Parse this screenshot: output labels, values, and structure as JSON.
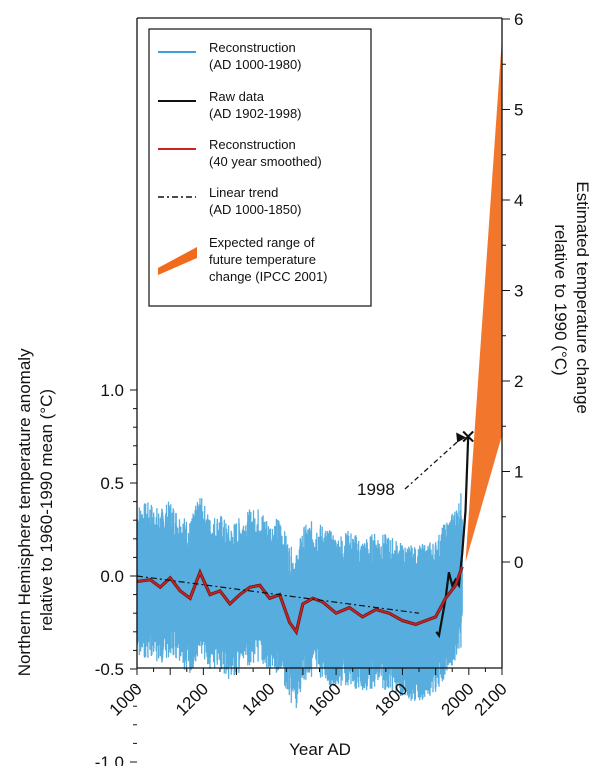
{
  "chart_data": {
    "type": "line",
    "xlabel": "Year AD",
    "ylabel_left": "Northern Hemisphere temperature anomaly relative to 1960-1990 mean (°C)",
    "ylabel_right": "Estimated temperature change relative to 1990 (°C)",
    "x_ticks": [
      "1000",
      "1200",
      "1400",
      "1600",
      "1800",
      "2000",
      "2100"
    ],
    "x_tick_values": [
      1000,
      1200,
      1400,
      1600,
      1800,
      2000,
      2100
    ],
    "y_left_ticks": [
      "1.0",
      "0.5",
      "0.0",
      "-0.5",
      "-1.0"
    ],
    "y_left_values": [
      1.0,
      0.5,
      0.0,
      -0.5,
      -1.0
    ],
    "y_right_ticks": [
      "6",
      "5",
      "4",
      "3",
      "2",
      "1",
      "0"
    ],
    "y_right_values": [
      6,
      5,
      4,
      3,
      2,
      1,
      0
    ],
    "xlim": [
      1000,
      2100
    ],
    "ylim_left": [
      -1.0,
      1.0
    ],
    "ylim_right": [
      0,
      6
    ],
    "legend_position": "top-left",
    "legend": [
      {
        "label_lines": [
          "Reconstruction",
          "(AD 1000-1980)"
        ],
        "color": "#3aa0d8",
        "style": "solid"
      },
      {
        "label_lines": [
          "Raw data",
          "(AD 1902-1998)"
        ],
        "color": "#111111",
        "style": "solid"
      },
      {
        "label_lines": [
          "Reconstruction",
          "(40 year smoothed)"
        ],
        "color": "#cc2222",
        "style": "solid"
      },
      {
        "label_lines": [
          "Linear trend",
          "(AD 1000-1850)"
        ],
        "color": "#111111",
        "style": "dashdot"
      },
      {
        "label_lines": [
          "Expected range of",
          "future temperature",
          "change (IPCC 2001)"
        ],
        "color": "#f26a1b",
        "style": "fill"
      }
    ],
    "annotation": {
      "text": "1998",
      "x": 1998,
      "y": 0.75
    },
    "series": [
      {
        "name": "Reconstruction (40 year smoothed)",
        "color": "#cc2222",
        "x": [
          1000,
          1040,
          1070,
          1100,
          1130,
          1160,
          1190,
          1220,
          1250,
          1280,
          1310,
          1340,
          1370,
          1400,
          1430,
          1460,
          1480,
          1500,
          1530,
          1560,
          1600,
          1640,
          1680,
          1720,
          1760,
          1800,
          1840,
          1870,
          1900,
          1930,
          1960,
          1980
        ],
        "y": [
          -0.03,
          -0.02,
          -0.06,
          -0.01,
          -0.08,
          -0.12,
          0.02,
          -0.1,
          -0.08,
          -0.15,
          -0.1,
          -0.06,
          -0.05,
          -0.12,
          -0.1,
          -0.25,
          -0.3,
          -0.15,
          -0.12,
          -0.14,
          -0.2,
          -0.17,
          -0.22,
          -0.18,
          -0.2,
          -0.24,
          -0.26,
          -0.24,
          -0.22,
          -0.12,
          -0.05,
          0.05
        ]
      },
      {
        "name": "Raw data (AD 1902-1998)",
        "color": "#111111",
        "x": [
          1902,
          1910,
          1920,
          1930,
          1940,
          1950,
          1960,
          1970,
          1980,
          1990,
          1998
        ],
        "y": [
          -0.3,
          -0.32,
          -0.22,
          -0.12,
          0.02,
          -0.05,
          -0.02,
          -0.05,
          0.12,
          0.35,
          0.75
        ]
      },
      {
        "name": "Linear trend (AD 1000-1850)",
        "color": "#111111",
        "x": [
          1000,
          1850
        ],
        "y": [
          0.0,
          -0.2
        ]
      },
      {
        "name": "Reconstruction (AD 1000-1980)",
        "color": "#3aa0d8",
        "x_range": [
          1000,
          1980
        ],
        "band_half_width": 0.42
      }
    ],
    "ipcc_range": {
      "x": [
        1990,
        2100
      ],
      "y_right_low": [
        0,
        1.4
      ],
      "y_right_high": [
        0,
        5.8
      ]
    }
  }
}
